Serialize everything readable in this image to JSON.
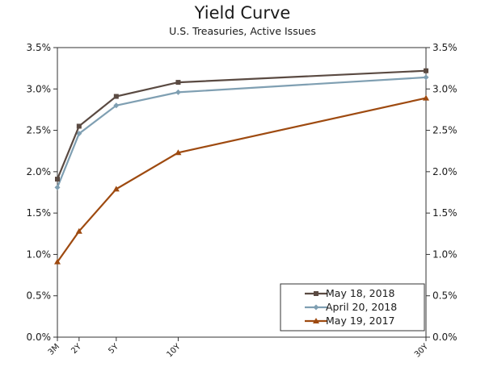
{
  "chart_data": {
    "type": "line",
    "title": "Yield Curve",
    "subtitle": "U.S. Treasuries, Active Issues",
    "xlabel": "",
    "ylabel": "",
    "x_categories": [
      "3M",
      "2Y",
      "5Y",
      "10Y",
      "30Y"
    ],
    "x_positions_years": [
      0.25,
      2,
      5,
      10,
      30
    ],
    "xlim": [
      0.25,
      30
    ],
    "ylim": [
      0,
      3.5
    ],
    "y_ticks": [
      "0.0%",
      "0.5%",
      "1.0%",
      "1.5%",
      "2.0%",
      "2.5%",
      "3.0%",
      "3.5%"
    ],
    "y_tick_values": [
      0,
      0.5,
      1.0,
      1.5,
      2.0,
      2.5,
      3.0,
      3.5
    ],
    "grid": false,
    "legend_position": "bottom-right",
    "series": [
      {
        "name": "May 18, 2018",
        "color": "#5a4a42",
        "marker": "square",
        "values": [
          1.91,
          2.55,
          2.91,
          3.08,
          3.22
        ]
      },
      {
        "name": "April 20, 2018",
        "color": "#7f9fb2",
        "marker": "diamond",
        "values": [
          1.81,
          2.46,
          2.8,
          2.96,
          3.14
        ]
      },
      {
        "name": "May 19, 2017",
        "color": "#9e4a10",
        "marker": "triangle",
        "values": [
          0.91,
          1.28,
          1.79,
          2.23,
          2.89
        ]
      }
    ]
  }
}
